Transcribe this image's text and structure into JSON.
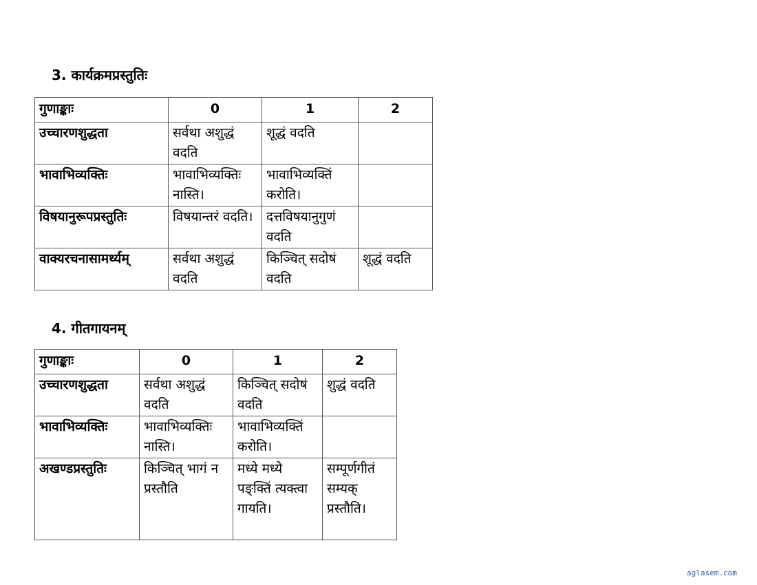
{
  "section3": {
    "title": "3. कार्यक्रमप्रस्तुतिः",
    "headers": [
      "गुणाङ्काः",
      "0",
      "1",
      "2"
    ],
    "rows": [
      [
        "उच्चारणशुद्धता",
        "सर्वथा अशुद्धं वदति",
        "शूद्धं वदति",
        ""
      ],
      [
        "भावाभिव्यक्तिः",
        "भावाभिव्यक्तिः नास्ति।",
        "भावाभिव्यक्तिं करोति।",
        ""
      ],
      [
        "विषयानुरूपप्रस्तुतिः",
        "विषयान्तरं वदति।",
        "दत्तविषयानुगुणं वदति",
        ""
      ],
      [
        "वाक्यरचनासामर्थ्यम्",
        "सर्वथा अशुद्धं वदति",
        "किञ्चित् सदोषं वदति",
        "शूद्धं वदति"
      ]
    ]
  },
  "section4": {
    "title": "4. गीतगायनम्",
    "headers": [
      "गुणाङ्काः",
      "0",
      "1",
      "2"
    ],
    "rows": [
      [
        "उच्चारणशुद्धता",
        "सर्वथा अशुद्धं वदति",
        "किञ्चित् सदोषं वदति",
        "शुद्धं वदति"
      ],
      [
        "भावाभिव्यक्तिः",
        "भावाभिव्यक्तिः नास्ति।",
        "भावाभिव्यक्तिं करोति।",
        ""
      ],
      [
        "अखण्डप्रस्तुतिः",
        "किञ्चित् भागं न प्रस्तौति",
        "मध्ये मध्ये पङ्क्तिं त्यक्त्वा गायति।",
        "सम्पूर्णगीतं सम्यक् प्रस्तौति।"
      ]
    ]
  },
  "footer": "aglasem.com"
}
